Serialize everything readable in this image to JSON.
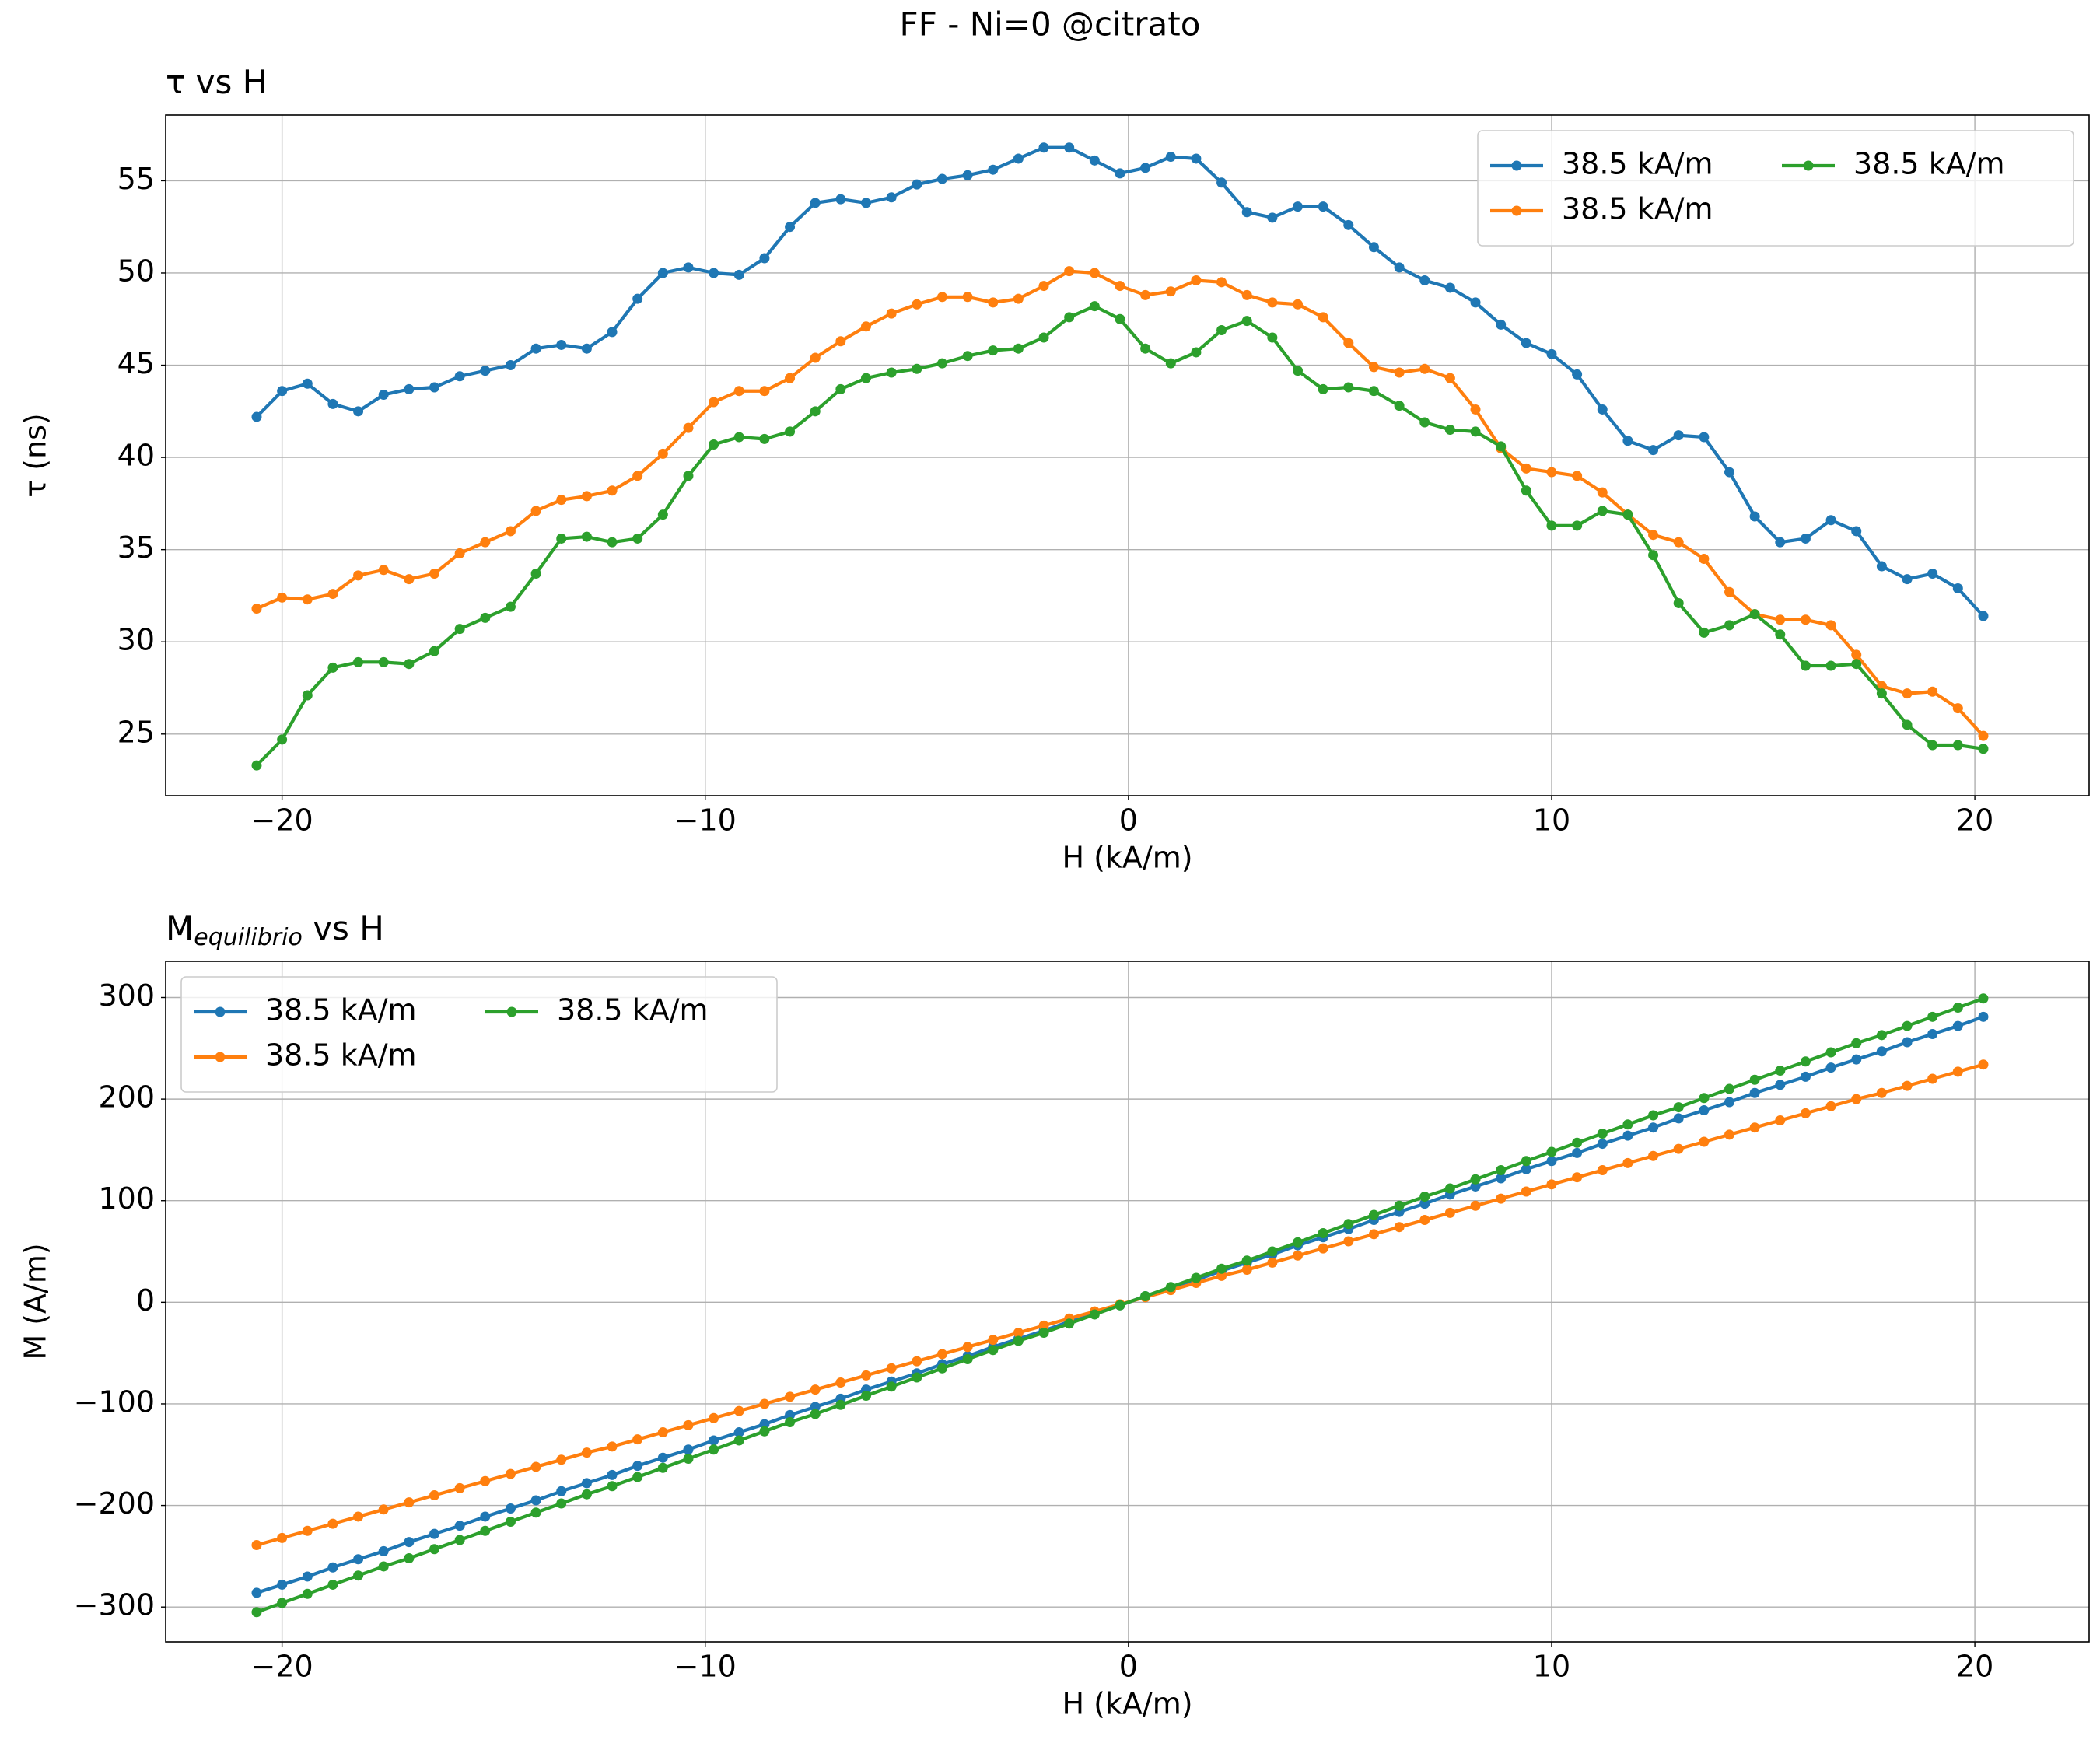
{
  "chart_data": {
    "suptitle": "FF - Ni=0 @citrato",
    "charts": [
      {
        "type": "line",
        "title": "τ vs H",
        "xlabel": "H (kA/m)",
        "ylabel": "τ (ns)",
        "xlim": [
          -22.75,
          22.7
        ],
        "ylim": [
          21.66,
          58.56
        ],
        "xticks": [
          {
            "value": -20,
            "label": "−20"
          },
          {
            "value": -10,
            "label": "−10"
          },
          0,
          10,
          20
        ],
        "yticks": [
          25,
          30,
          35,
          40,
          45,
          50,
          55
        ],
        "grid": true,
        "legend": "upper right",
        "legend_columns": 2,
        "marker": true,
        "x": [
          -20.6,
          -20.0,
          -19.4,
          -18.8,
          -18.2,
          -17.6,
          -17.0,
          -16.4,
          -15.8,
          -15.2,
          -14.6,
          -14.0,
          -13.4,
          -12.8,
          -12.2,
          -11.6,
          -11.0,
          -10.4,
          -9.8,
          -9.2,
          -8.6,
          -8.0,
          -7.4,
          -6.8,
          -6.2,
          -5.6,
          -5.0,
          -4.4,
          -3.8,
          -3.2,
          -2.6,
          -2.0,
          -1.4,
          -0.8,
          -0.2,
          0.4,
          1.0,
          1.6,
          2.2,
          2.8,
          3.4,
          4.0,
          4.6,
          5.2,
          5.8,
          6.4,
          7.0,
          7.6,
          8.2,
          8.8,
          9.4,
          10.0,
          10.6,
          11.2,
          11.8,
          12.4,
          13.0,
          13.6,
          14.2,
          14.8,
          15.4,
          16.0,
          16.6,
          17.2,
          17.8,
          18.4,
          19.0,
          19.6,
          20.2
        ],
        "series": [
          {
            "name": "38.5 kA/m",
            "color": "#1f77b4",
            "values": [
              42.2,
              43.6,
              44.0,
              42.9,
              42.5,
              43.4,
              43.7,
              43.8,
              44.4,
              44.7,
              45.0,
              45.9,
              46.1,
              45.9,
              46.8,
              48.6,
              50.0,
              50.3,
              50.0,
              49.9,
              50.8,
              52.5,
              53.8,
              54.0,
              53.8,
              54.1,
              54.8,
              55.1,
              55.3,
              55.6,
              56.2,
              56.8,
              56.8,
              56.1,
              55.4,
              55.7,
              56.3,
              56.2,
              54.9,
              53.3,
              53.0,
              53.6,
              53.6,
              52.6,
              51.4,
              50.3,
              49.6,
              49.2,
              48.4,
              47.2,
              46.2,
              45.6,
              44.5,
              42.6,
              40.9,
              40.4,
              41.2,
              41.1,
              39.2,
              36.8,
              35.4,
              35.6,
              36.6,
              36.0,
              34.1,
              33.4,
              33.7,
              32.9,
              31.4
            ]
          },
          {
            "name": "38.5 kA/m",
            "color": "#ff7f0e",
            "values": [
              31.8,
              32.4,
              32.3,
              32.6,
              33.6,
              33.9,
              33.4,
              33.7,
              34.8,
              35.4,
              36.0,
              37.1,
              37.7,
              37.9,
              38.2,
              39.0,
              40.2,
              41.6,
              43.0,
              43.6,
              43.6,
              44.3,
              45.4,
              46.3,
              47.1,
              47.8,
              48.3,
              48.7,
              48.7,
              48.4,
              48.6,
              49.3,
              50.1,
              50.0,
              49.3,
              48.8,
              49.0,
              49.6,
              49.5,
              48.8,
              48.4,
              48.3,
              47.6,
              46.2,
              44.9,
              44.6,
              44.8,
              44.3,
              42.6,
              40.5,
              39.4,
              39.2,
              39.0,
              38.1,
              36.9,
              35.8,
              35.4,
              34.5,
              32.7,
              31.5,
              31.2,
              31.2,
              30.9,
              29.3,
              27.6,
              27.2,
              27.3,
              26.4,
              24.9
            ]
          },
          {
            "name": "38.5 kA/m",
            "color": "#2ca02c",
            "values": [
              23.3,
              24.7,
              27.1,
              28.6,
              28.9,
              28.9,
              28.8,
              29.5,
              30.7,
              31.3,
              31.9,
              33.7,
              35.6,
              35.7,
              35.4,
              35.6,
              36.9,
              39.0,
              40.7,
              41.1,
              41.0,
              41.4,
              42.5,
              43.7,
              44.3,
              44.6,
              44.8,
              45.1,
              45.5,
              45.8,
              45.9,
              46.5,
              47.6,
              48.2,
              47.5,
              45.9,
              45.1,
              45.7,
              46.9,
              47.4,
              46.5,
              44.7,
              43.7,
              43.8,
              43.6,
              42.8,
              41.9,
              41.5,
              41.4,
              40.6,
              38.2,
              36.3,
              36.3,
              37.1,
              36.9,
              34.7,
              32.1,
              30.5,
              30.9,
              31.5,
              30.4,
              28.7,
              28.7,
              28.8,
              27.2,
              25.5,
              24.4,
              24.4,
              24.2
            ]
          }
        ]
      },
      {
        "type": "line",
        "title": "M",
        "title_sub": "equilibrio",
        "title_tail": " vs H",
        "xlabel": "H (kA/m)",
        "ylabel": "M (A/m)",
        "xlim": [
          -22.75,
          22.7
        ],
        "ylim": [
          -334.3,
          335.6
        ],
        "xticks": [
          {
            "value": -20,
            "label": "−20"
          },
          {
            "value": -10,
            "label": "−10"
          },
          0,
          10,
          20
        ],
        "yticks": [
          {
            "value": -300,
            "label": "−300"
          },
          {
            "value": -200,
            "label": "−200"
          },
          {
            "value": -100,
            "label": "−100"
          },
          0,
          100,
          200,
          300
        ],
        "grid": true,
        "legend": "upper left",
        "legend_columns": 2,
        "marker": true,
        "x": [
          -20.6,
          -20.0,
          -19.4,
          -18.8,
          -18.2,
          -17.6,
          -17.0,
          -16.4,
          -15.8,
          -15.2,
          -14.6,
          -14.0,
          -13.4,
          -12.8,
          -12.2,
          -11.6,
          -11.0,
          -10.4,
          -9.8,
          -9.2,
          -8.6,
          -8.0,
          -7.4,
          -6.8,
          -6.2,
          -5.6,
          -5.0,
          -4.4,
          -3.8,
          -3.2,
          -2.6,
          -2.0,
          -1.4,
          -0.8,
          -0.2,
          0.4,
          1.0,
          1.6,
          2.2,
          2.8,
          3.4,
          4.0,
          4.6,
          5.2,
          5.8,
          6.4,
          7.0,
          7.6,
          8.2,
          8.8,
          9.4,
          10.0,
          10.6,
          11.2,
          11.8,
          12.4,
          13.0,
          13.6,
          14.2,
          14.8,
          15.4,
          16.0,
          16.6,
          17.2,
          17.8,
          18.4,
          19.0,
          19.6,
          20.2
        ],
        "series": [
          {
            "name": "38.5 kA/m",
            "color": "#1f77b4",
            "values": [
              -286,
              -278,
              -270,
              -261,
              -253,
              -245,
              -236,
              -228,
              -220,
              -211,
              -203,
              -195,
              -186,
              -178,
              -170,
              -161,
              -153,
              -145,
              -136,
              -128,
              -120,
              -111,
              -103,
              -95,
              -86,
              -78,
              -70,
              -61,
              -53,
              -44,
              -36,
              -28,
              -19,
              -11,
              -3,
              6,
              14,
              22,
              31,
              39,
              47,
              56,
              64,
              72,
              81,
              89,
              97,
              106,
              114,
              122,
              131,
              139,
              147,
              156,
              164,
              172,
              181,
              189,
              197,
              206,
              214,
              222,
              231,
              239,
              247,
              256,
              264,
              272,
              281
            ]
          },
          {
            "name": "38.5 kA/m",
            "color": "#ff7f0e",
            "values": [
              -239,
              -232,
              -225,
              -218,
              -211,
              -204,
              -197,
              -190,
              -183,
              -176,
              -169,
              -162,
              -155,
              -148,
              -142,
              -135,
              -128,
              -121,
              -114,
              -107,
              -100,
              -93,
              -86,
              -79,
              -72,
              -65,
              -58,
              -51,
              -44,
              -37,
              -30,
              -23,
              -16,
              -9,
              -2,
              5,
              12,
              19,
              26,
              32,
              39,
              46,
              53,
              60,
              67,
              74,
              81,
              88,
              95,
              102,
              109,
              116,
              123,
              130,
              137,
              144,
              151,
              158,
              165,
              172,
              179,
              186,
              193,
              200,
              206,
              213,
              220,
              227,
              234
            ]
          },
          {
            "name": "38.5 kA/m",
            "color": "#2ca02c",
            "values": [
              -305,
              -296,
              -287,
              -278,
              -269,
              -260,
              -252,
              -243,
              -234,
              -225,
              -216,
              -207,
              -198,
              -189,
              -181,
              -172,
              -163,
              -154,
              -145,
              -136,
              -127,
              -118,
              -110,
              -101,
              -92,
              -83,
              -74,
              -65,
              -56,
              -47,
              -38,
              -30,
              -21,
              -12,
              -3,
              6,
              15,
              24,
              33,
              41,
              50,
              59,
              68,
              77,
              86,
              95,
              104,
              112,
              121,
              130,
              139,
              148,
              157,
              166,
              175,
              184,
              192,
              201,
              210,
              219,
              228,
              237,
              246,
              255,
              263,
              272,
              281,
              290,
              299
            ]
          }
        ]
      }
    ]
  }
}
